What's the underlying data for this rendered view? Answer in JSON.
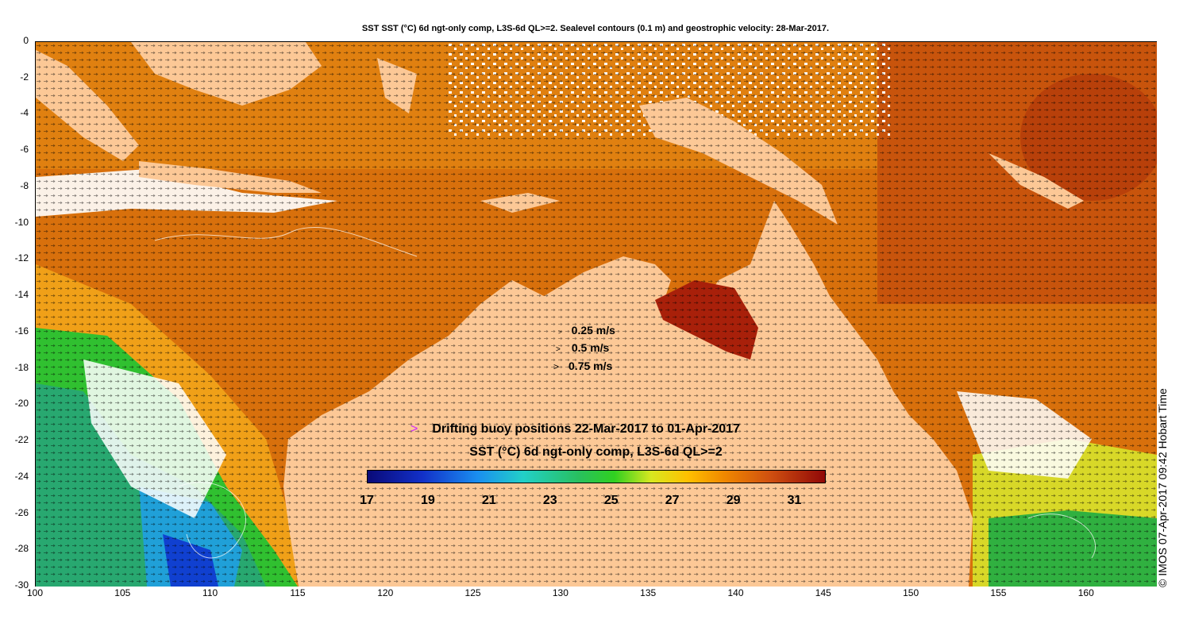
{
  "title": "SST SST (°C) 6d ngt-only comp, L3S-6d QL>=2. Sealevel contours (0.1 m) and geostrophic velocity: 28-Mar-2017.",
  "y_ticks": [
    "0",
    "-2",
    "-4",
    "-6",
    "-8",
    "-10",
    "-12",
    "-14",
    "-16",
    "-18",
    "-20",
    "-22",
    "-24",
    "-26",
    "-28",
    "-30"
  ],
  "x_ticks": [
    "100",
    "105",
    "110",
    "115",
    "120",
    "125",
    "130",
    "135",
    "140",
    "145",
    "150",
    "155",
    "160"
  ],
  "velocity_legend": [
    {
      "marker": ">",
      "label": "0.25 m/s"
    },
    {
      "marker": ">",
      "label": "0.5 m/s"
    },
    {
      "marker": ">",
      "label": "0.75 m/s"
    }
  ],
  "buoy_legend": {
    "marker": ">",
    "label": "Drifting buoy positions 22-Mar-2017 to 01-Apr-2017",
    "marker_color": "#d028ff"
  },
  "colorbar": {
    "title": "SST (°C) 6d ngt-only comp, L3S-6d QL>=2",
    "ticks": [
      "17",
      "19",
      "21",
      "23",
      "25",
      "27",
      "29",
      "31"
    ],
    "range": [
      17,
      32
    ]
  },
  "credit": "© IMOS 07-Apr-2017 09:42 Hobart Time",
  "colors": {
    "land": "#fcc896",
    "warm": "#d8700c",
    "hot": "#a8200a",
    "green": "#30c030",
    "cyan": "#20a0d8",
    "blue": "#1040d0"
  },
  "extent": {
    "lon": [
      100,
      164
    ],
    "lat": [
      -30,
      0
    ]
  }
}
